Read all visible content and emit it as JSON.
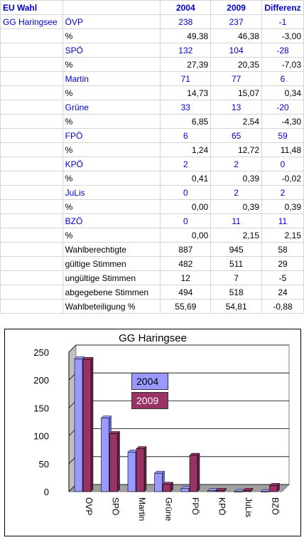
{
  "header": {
    "title": "EU Wahl",
    "col2004": "2004",
    "col2009": "2009",
    "diff": "Differenz"
  },
  "municipality": "GG Haringsee",
  "parties": [
    {
      "name": "ÖVP",
      "v2004": "238",
      "v2009": "237",
      "diff": "-1",
      "p2004": "49,38",
      "p2009": "46,38",
      "pdiff": "-3,00"
    },
    {
      "name": "SPÖ",
      "v2004": "132",
      "v2009": "104",
      "diff": "-28",
      "p2004": "27,39",
      "p2009": "20,35",
      "pdiff": "-7,03"
    },
    {
      "name": "Martin",
      "v2004": "71",
      "v2009": "77",
      "diff": "6",
      "p2004": "14,73",
      "p2009": "15,07",
      "pdiff": "0,34"
    },
    {
      "name": "Grüne",
      "v2004": "33",
      "v2009": "13",
      "diff": "-20",
      "p2004": "6,85",
      "p2009": "2,54",
      "pdiff": "-4,30"
    },
    {
      "name": "FPÖ",
      "v2004": "6",
      "v2009": "65",
      "diff": "59",
      "p2004": "1,24",
      "p2009": "12,72",
      "pdiff": "11,48"
    },
    {
      "name": "KPÖ",
      "v2004": "2",
      "v2009": "2",
      "diff": "0",
      "p2004": "0,41",
      "p2009": "0,39",
      "pdiff": "-0,02"
    },
    {
      "name": "JuLis",
      "v2004": "0",
      "v2009": "2",
      "diff": "2",
      "p2004": "0,00",
      "p2009": "0,39",
      "pdiff": "0,39"
    },
    {
      "name": "BZÖ",
      "v2004": "0",
      "v2009": "11",
      "diff": "11",
      "p2004": "0,00",
      "p2009": "2,15",
      "pdiff": "2,15"
    }
  ],
  "pct_label": "%",
  "summary": [
    {
      "label": "Wahlberechtigte",
      "v2004": "887",
      "v2009": "945",
      "diff": "58"
    },
    {
      "label": "gültige Stimmen",
      "v2004": "482",
      "v2009": "511",
      "diff": "29"
    },
    {
      "label": "ungültige Stimmen",
      "v2004": "12",
      "v2009": "7",
      "diff": "-5"
    },
    {
      "label": "abgegebene Stimmen",
      "v2004": "494",
      "v2009": "518",
      "diff": "24"
    },
    {
      "label": "Wahlbeteiligung %",
      "v2004": "55,69",
      "v2009": "54,81",
      "diff": "-0,88"
    }
  ],
  "colors": {
    "text_blue": "#0000cc",
    "bar2004": "#9999ff",
    "bar2009": "#993366"
  },
  "chart_data": {
    "type": "bar",
    "title": "GG Haringsee",
    "categories": [
      "ÖVP",
      "SPÖ",
      "Martin",
      "Grüne",
      "FPÖ",
      "KPÖ",
      "JuLis",
      "BZÖ"
    ],
    "series": [
      {
        "name": "2004",
        "values": [
          238,
          132,
          71,
          33,
          6,
          2,
          0,
          0
        ]
      },
      {
        "name": "2009",
        "values": [
          237,
          104,
          77,
          13,
          65,
          2,
          2,
          11
        ]
      }
    ],
    "yticks": [
      "0",
      "50",
      "100",
      "150",
      "200",
      "250"
    ],
    "ylim": [
      0,
      250
    ],
    "grid": true,
    "legend": "inside-center"
  }
}
